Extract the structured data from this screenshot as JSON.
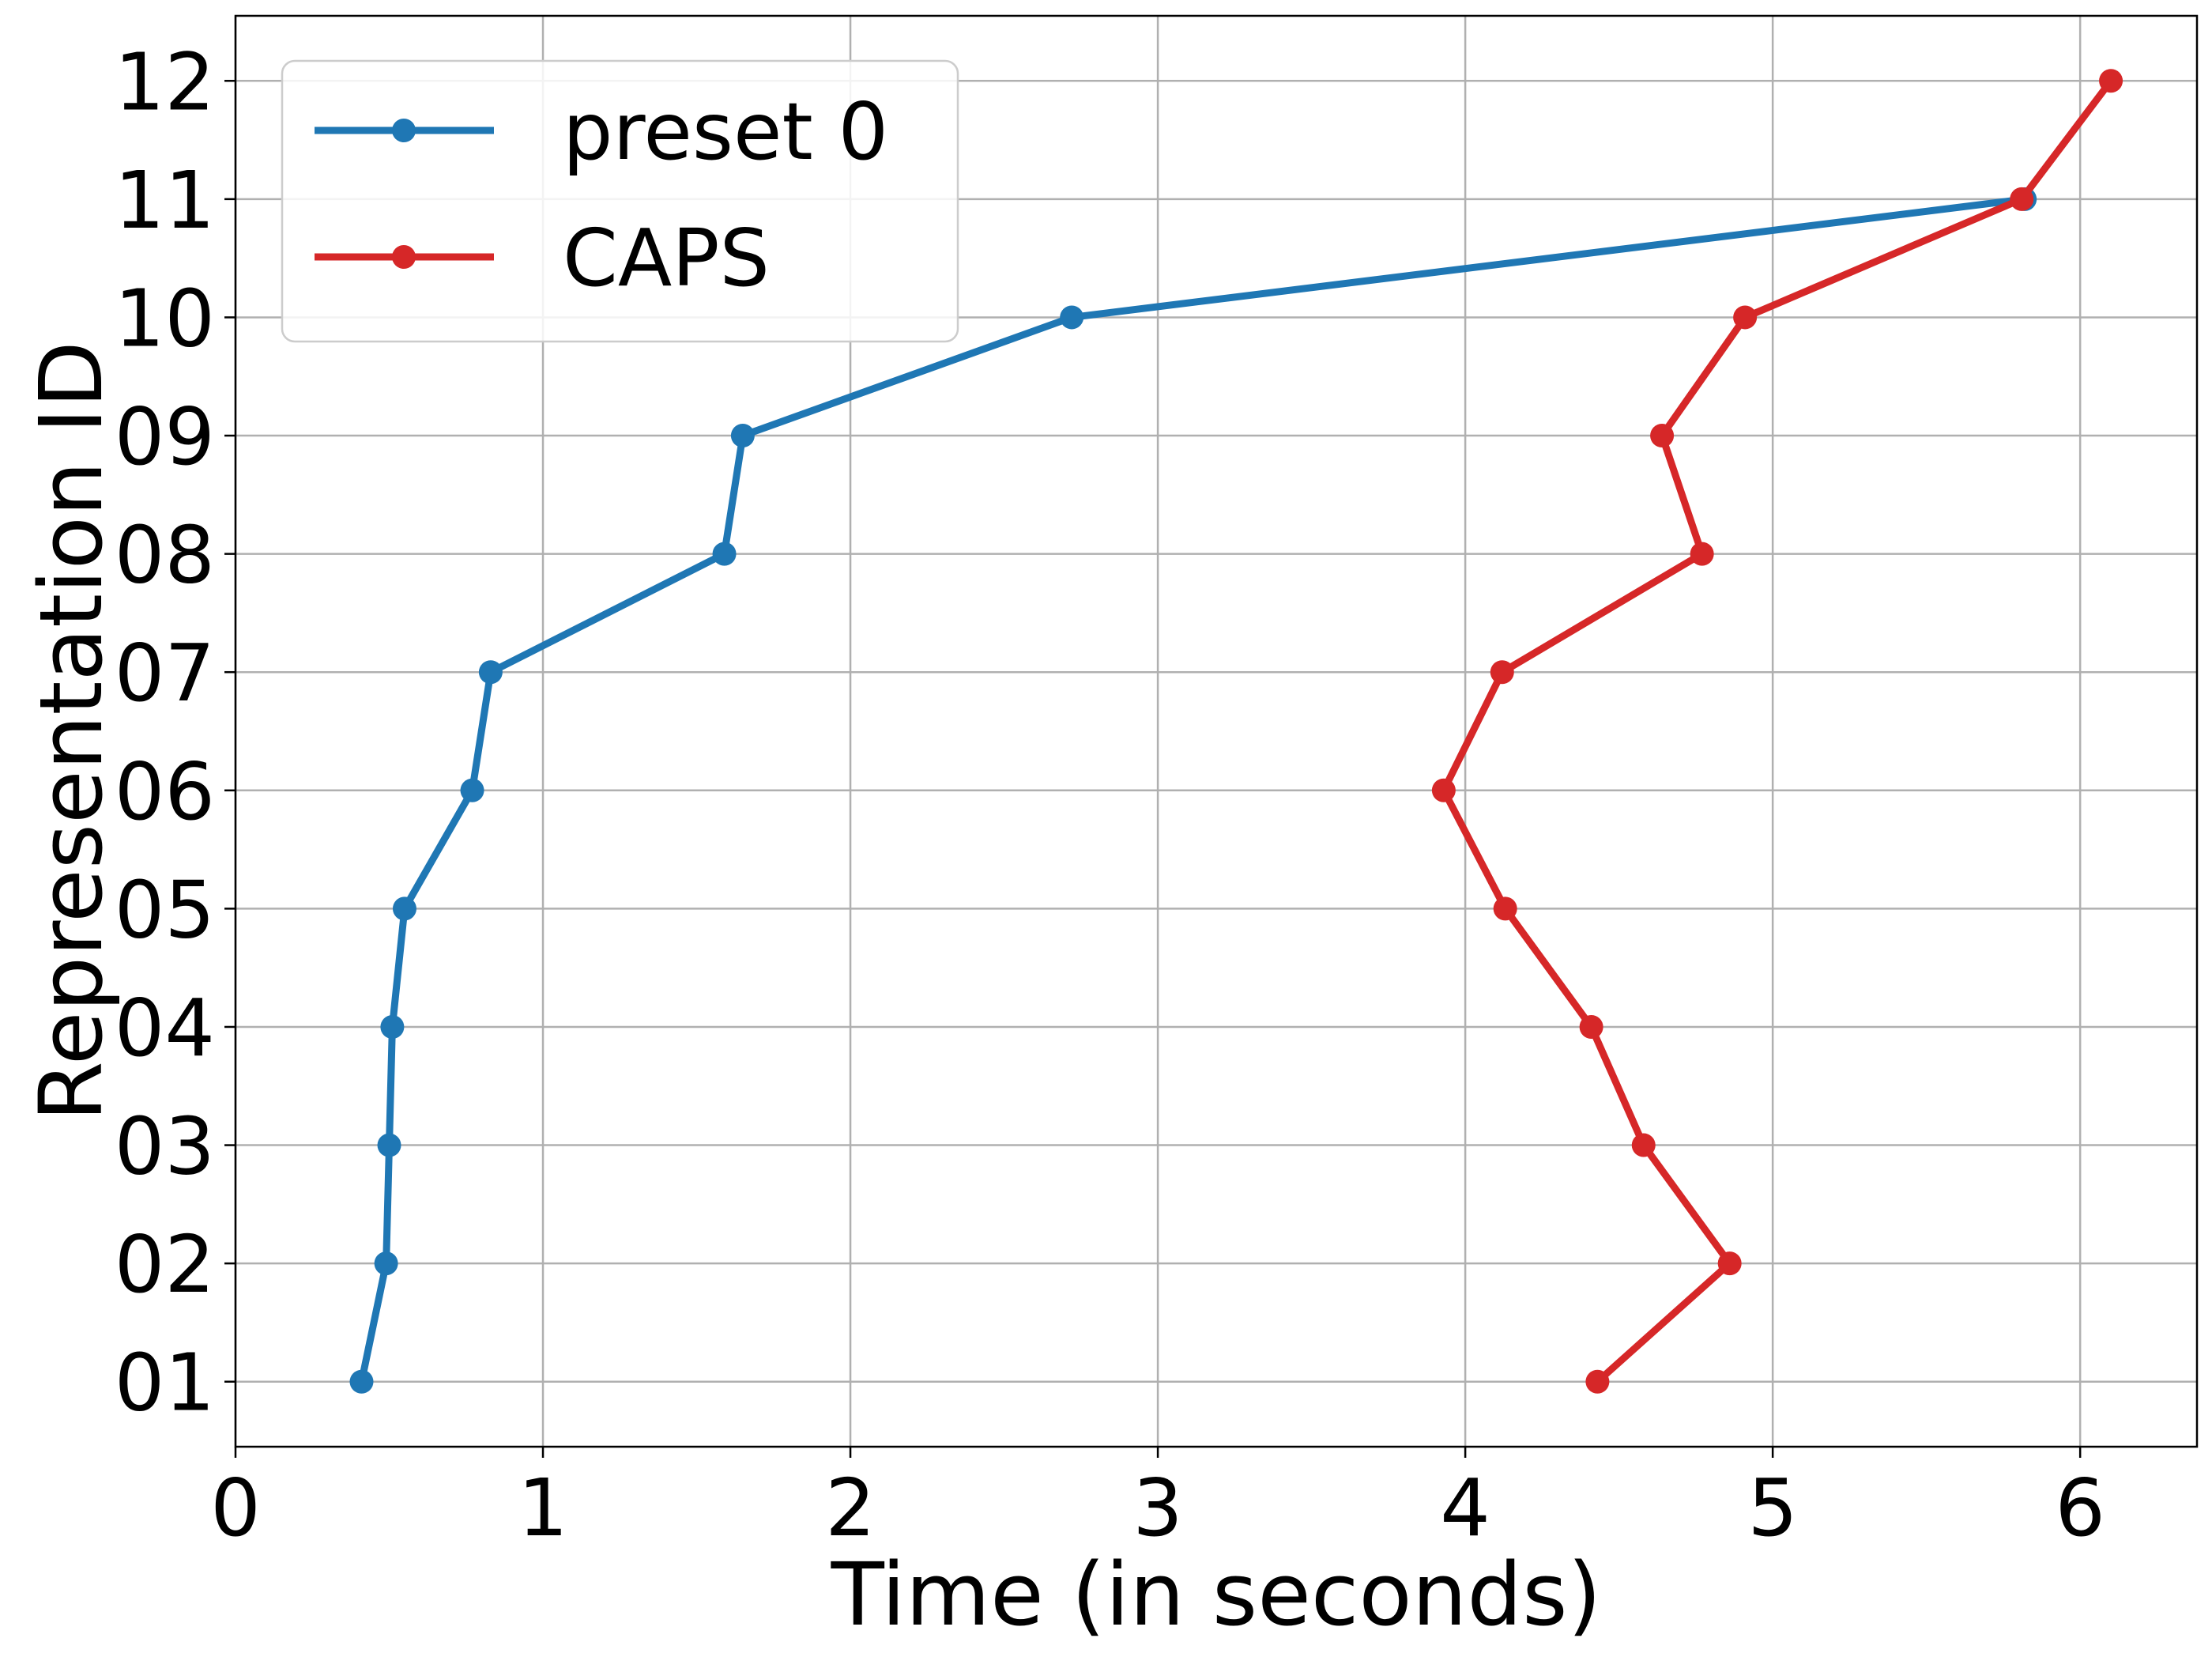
{
  "chart_data": {
    "type": "line",
    "title": "",
    "xlabel": "Time (in seconds)",
    "ylabel": "Representation ID",
    "xlim": [
      0,
      6.38
    ],
    "ylim": [
      0.45,
      12.55
    ],
    "xticks": [
      0,
      1,
      2,
      3,
      4,
      5,
      6
    ],
    "xtick_labels": [
      "0",
      "1",
      "2",
      "3",
      "4",
      "5",
      "6"
    ],
    "yticks": [
      1,
      2,
      3,
      4,
      5,
      6,
      7,
      8,
      9,
      10,
      11,
      12
    ],
    "ytick_labels": [
      "01",
      "02",
      "03",
      "04",
      "05",
      "06",
      "07",
      "08",
      "09",
      "10",
      "11",
      "12"
    ],
    "grid": true,
    "legend_position": "top-left",
    "series": [
      {
        "name": "preset 0",
        "color": "#1f77b4",
        "x": [
          0.41,
          0.49,
          0.5,
          0.51,
          0.55,
          0.77,
          0.83,
          1.59,
          1.65,
          2.72,
          5.82
        ],
        "y": [
          1,
          2,
          3,
          4,
          5,
          6,
          7,
          8,
          9,
          10,
          11
        ]
      },
      {
        "name": "CAPS",
        "color": "#d62728",
        "x": [
          4.43,
          4.86,
          4.58,
          4.41,
          4.13,
          3.93,
          4.12,
          4.77,
          4.64,
          4.91,
          5.81,
          6.1
        ],
        "y": [
          1,
          2,
          3,
          4,
          5,
          6,
          7,
          8,
          9,
          10,
          11,
          12
        ]
      }
    ]
  }
}
